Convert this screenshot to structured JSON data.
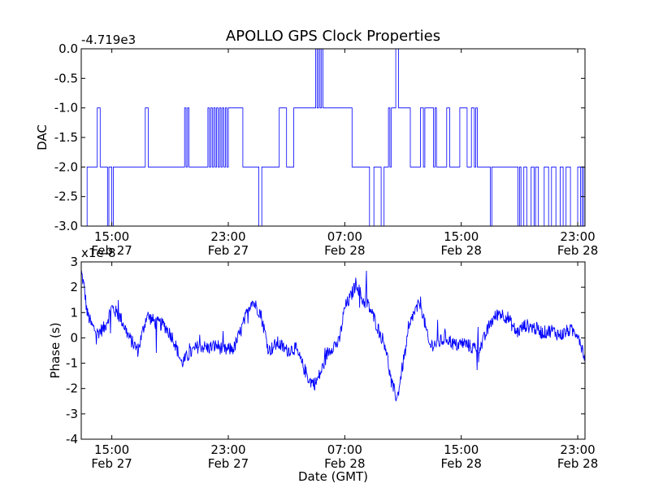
{
  "figure": {
    "title": "APOLLO GPS Clock Properties",
    "xlabel": "Date (GMT)",
    "x_ticks": [
      {
        "line1": "15:00",
        "line2": "Feb 27"
      },
      {
        "line1": "23:00",
        "line2": "Feb 27"
      },
      {
        "line1": "07:00",
        "line2": "Feb 28"
      },
      {
        "line1": "15:00",
        "line2": "Feb 28"
      },
      {
        "line1": "23:00",
        "line2": "Feb 28"
      }
    ],
    "line_color": "#0000ff"
  },
  "chart_data": [
    {
      "type": "line",
      "title": "APOLLO GPS Clock Properties",
      "ylabel": "DAC",
      "y_offset_label": "-4.719e3",
      "x_unit": "hours since Feb 27 00:00 GMT",
      "xlim": [
        12.9,
        47.5
      ],
      "ylim": [
        -3.0,
        0.0
      ],
      "yticks": [
        "0.0",
        "-0.5",
        "-1.0",
        "-1.5",
        "-2.0",
        "-2.5",
        "-3.0"
      ],
      "ytick_values": [
        0.0,
        -0.5,
        -1.0,
        -1.5,
        -2.0,
        -2.5,
        -3.0
      ],
      "style": "step",
      "series": [
        {
          "x": [
            12.9,
            13.3,
            13.4,
            14.0,
            14.2,
            14.6,
            14.7,
            14.8,
            14.9,
            15.0,
            15.1,
            15.3,
            15.4,
            17.3,
            17.5,
            19.0,
            20.0,
            20.1,
            20.2,
            20.3,
            20.4,
            21.6,
            21.7,
            21.8,
            21.9,
            22.0,
            22.1,
            22.2,
            22.3,
            22.4,
            22.5,
            22.6,
            22.7,
            22.8,
            22.9,
            23.0,
            23.9,
            24.0,
            25.0,
            25.1,
            25.3,
            26.0,
            26.5,
            27.0,
            27.5,
            28.5,
            29.0,
            29.1,
            29.2,
            29.3,
            29.4,
            29.5,
            30.0,
            30.1,
            30.8,
            31.5,
            31.7,
            32.0,
            32.5,
            32.7,
            33.0,
            33.5,
            33.7,
            34.0,
            34.1,
            34.2,
            34.3,
            34.5,
            34.7,
            35.0,
            35.3,
            35.5,
            36.2,
            36.4,
            36.5,
            37.0,
            37.1,
            37.2,
            37.3,
            38.0,
            38.2,
            38.8,
            38.9,
            39.3,
            39.4,
            39.7,
            39.9,
            40.0,
            40.1,
            40.9,
            41.0,
            41.1,
            42.7,
            42.9,
            43.0,
            43.1,
            43.3,
            43.5,
            43.8,
            44.0,
            44.1,
            44.3,
            44.7,
            45.0,
            45.2,
            45.5,
            45.8,
            46.0,
            46.2,
            46.5,
            47.0,
            47.2,
            47.3,
            47.4,
            47.5
          ],
          "y": [
            -3,
            -2,
            -2,
            -1,
            -2,
            -2,
            -3,
            -2,
            -2,
            -3,
            -2,
            -2,
            -2,
            -1,
            -2,
            -2,
            -1,
            -2,
            -1,
            -2,
            -2,
            -1,
            -2,
            -1,
            -2,
            -1,
            -2,
            -1,
            -2,
            -1,
            -2,
            -1,
            -2,
            -1,
            -2,
            -1,
            -1,
            -2,
            -2,
            -3,
            -2,
            -2,
            -1,
            -2,
            -1,
            -1,
            0,
            -1,
            0,
            -1,
            0,
            -1,
            -1,
            -1,
            -1,
            -2,
            -2,
            -2,
            -2,
            -3,
            -2,
            -3,
            -2,
            -1,
            -2,
            -1,
            -1,
            0,
            -1,
            -1,
            -1,
            -2,
            -1,
            -2,
            -1,
            -1,
            -2,
            -1,
            -2,
            -1,
            -2,
            -2,
            -1,
            -1,
            -2,
            -1,
            -2,
            -1,
            -2,
            -2,
            -3,
            -2,
            -2,
            -3,
            -2,
            -3,
            -2,
            -3,
            -2,
            -3,
            -2,
            -3,
            -2,
            -3,
            -2,
            -3,
            -2,
            -3,
            -2,
            -3,
            -2,
            -3,
            -2,
            -3,
            -2
          ]
        }
      ]
    },
    {
      "type": "line",
      "ylabel": "Phase (s)",
      "y_offset_label": "x1e-8",
      "x_unit": "hours since Feb 27 00:00 GMT",
      "xlim": [
        12.9,
        47.5
      ],
      "ylim": [
        -4,
        3
      ],
      "yticks": [
        "3",
        "2",
        "1",
        "0",
        "-1",
        "-2",
        "-3",
        "-4"
      ],
      "ytick_values": [
        3,
        2,
        1,
        0,
        -1,
        -2,
        -3,
        -4
      ],
      "style": "noisy",
      "series": [
        {
          "x": [
            12.9,
            13.1,
            13.3,
            13.6,
            14.0,
            14.5,
            15.0,
            15.6,
            16.2,
            16.8,
            17.4,
            18.0,
            18.6,
            19.2,
            19.8,
            20.4,
            21.0,
            21.6,
            22.2,
            22.8,
            23.4,
            24.0,
            24.6,
            25.2,
            25.8,
            26.4,
            27.0,
            27.6,
            28.2,
            28.6,
            29.0,
            29.4,
            29.8,
            30.2,
            30.6,
            31.0,
            31.4,
            31.8,
            32.2,
            32.6,
            33.0,
            33.4,
            33.8,
            34.2,
            34.6,
            35.0,
            35.6,
            36.2,
            36.8,
            37.4,
            38.0,
            38.6,
            39.2,
            39.8,
            40.4,
            41.0,
            41.6,
            42.2,
            42.8,
            43.4,
            44.0,
            44.6,
            45.2,
            45.8,
            46.4,
            47.0,
            47.5
          ],
          "y": [
            2.6,
            2.0,
            1.0,
            0.5,
            0.2,
            0.4,
            1.2,
            0.8,
            0.0,
            -0.5,
            0.9,
            0.6,
            0.5,
            0.0,
            -1.0,
            -0.6,
            -0.3,
            -0.4,
            -0.3,
            -0.5,
            -0.4,
            0.5,
            1.5,
            1.0,
            -0.5,
            -0.2,
            -0.5,
            -0.4,
            -1.2,
            -1.7,
            -1.8,
            -1.3,
            -0.6,
            -0.3,
            -0.2,
            1.2,
            1.6,
            2.2,
            1.5,
            1.3,
            0.8,
            0.2,
            -0.3,
            -1.8,
            -2.4,
            -1.0,
            0.8,
            1.4,
            -0.3,
            -0.2,
            0.0,
            -0.3,
            -0.2,
            -0.4,
            -0.3,
            0.6,
            1.0,
            0.8,
            0.2,
            0.5,
            0.4,
            0.2,
            0.3,
            0.1,
            0.3,
            0.2,
            -0.8
          ]
        }
      ]
    }
  ]
}
